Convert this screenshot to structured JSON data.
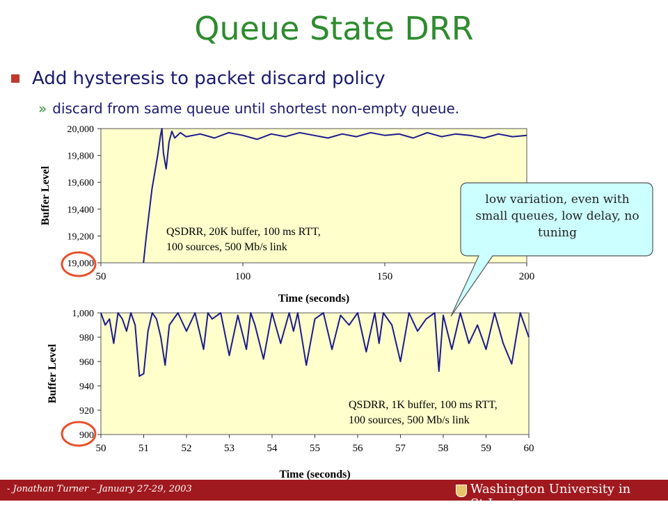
{
  "slide": {
    "title": "Queue State DRR",
    "bullet": "Add hysteresis to packet discard policy",
    "sub_marker": "»",
    "sub_bullet": "discard from same queue until shortest non-empty queue.",
    "callout": "low variation, even with small queues, low delay, no tuning",
    "footer_text": "- Jonathan Turner – January 27-29, 2003",
    "footer_logo": "Washington University in St.Louis",
    "colors": {
      "title": "#2e8b2e",
      "text": "#1a1a6e",
      "footer": "#a0191e",
      "plot_bg": "#ffffcc",
      "series": "#1a1a8c",
      "highlight": "#e8502a",
      "callout_bg": "#ccffff"
    }
  },
  "chart_data": [
    {
      "type": "line",
      "xlabel": "Time (seconds)",
      "ylabel": "Buffer Level",
      "xlim": [
        50,
        200
      ],
      "ylim": [
        19000,
        20000
      ],
      "xticks": [
        50,
        100,
        150,
        200
      ],
      "yticks": [
        19000,
        19200,
        19400,
        19600,
        19800,
        20000
      ],
      "ytick_labels": [
        "19,000",
        "19,200",
        "19,400",
        "19,600",
        "19,800",
        "20,000"
      ],
      "annotation": [
        "QSDRR, 20K buffer, 100 ms RTT,",
        "100 sources, 500 Mb/s link"
      ],
      "series": [
        {
          "x": [
            65,
            66,
            68,
            70,
            71,
            71.5,
            72,
            73,
            74,
            75,
            76,
            78,
            80,
            85,
            90,
            95,
            100,
            105,
            110,
            115,
            120,
            125,
            130,
            135,
            140,
            145,
            150,
            155,
            160,
            165,
            170,
            175,
            180,
            185,
            190,
            195,
            200
          ],
          "y": [
            19000,
            19200,
            19550,
            19800,
            19950,
            20000,
            19820,
            19700,
            19900,
            19980,
            19930,
            19970,
            19940,
            19960,
            19930,
            19970,
            19950,
            19920,
            19960,
            19940,
            19970,
            19950,
            19930,
            19960,
            19940,
            19970,
            19950,
            19960,
            19930,
            19970,
            19940,
            19960,
            19950,
            19930,
            19960,
            19940,
            19950
          ]
        }
      ]
    },
    {
      "type": "line",
      "xlabel": "Time (seconds)",
      "ylabel": "Buffer Level",
      "xlim": [
        50,
        60
      ],
      "ylim": [
        900,
        1000
      ],
      "xticks": [
        50,
        51,
        52,
        53,
        54,
        55,
        56,
        57,
        58,
        59,
        60
      ],
      "yticks": [
        900,
        920,
        940,
        960,
        980,
        1000
      ],
      "ytick_labels": [
        "900",
        "920",
        "940",
        "960",
        "980",
        "1,000"
      ],
      "annotation": [
        "QSDRR, 1K buffer, 100 ms RTT,",
        "100 sources, 500 Mb/s link"
      ],
      "series": [
        {
          "x": [
            50,
            50.1,
            50.2,
            50.3,
            50.4,
            50.5,
            50.6,
            50.7,
            50.8,
            50.9,
            51,
            51.1,
            51.2,
            51.3,
            51.4,
            51.5,
            51.6,
            51.8,
            52,
            52.2,
            52.4,
            52.5,
            52.6,
            52.8,
            53,
            53.2,
            53.4,
            53.5,
            53.6,
            53.8,
            54,
            54.2,
            54.4,
            54.5,
            54.6,
            54.8,
            55,
            55.2,
            55.4,
            55.6,
            55.8,
            56,
            56.2,
            56.4,
            56.5,
            56.6,
            56.8,
            57,
            57.2,
            57.4,
            57.6,
            57.8,
            57.9,
            58,
            58.2,
            58.4,
            58.6,
            58.8,
            59,
            59.2,
            59.4,
            59.6,
            59.8,
            60
          ],
          "y": [
            1000,
            990,
            995,
            975,
            1000,
            995,
            985,
            1000,
            990,
            948,
            950,
            985,
            1000,
            995,
            980,
            957,
            990,
            1000,
            985,
            1000,
            970,
            1000,
            995,
            1000,
            965,
            998,
            970,
            1000,
            990,
            962,
            1000,
            975,
            1000,
            985,
            1000,
            957,
            995,
            1000,
            970,
            998,
            990,
            1000,
            968,
            1000,
            975,
            1000,
            990,
            960,
            1000,
            985,
            995,
            1000,
            952,
            998,
            970,
            1000,
            975,
            990,
            970,
            1000,
            975,
            958,
            1000,
            980
          ]
        }
      ]
    }
  ]
}
